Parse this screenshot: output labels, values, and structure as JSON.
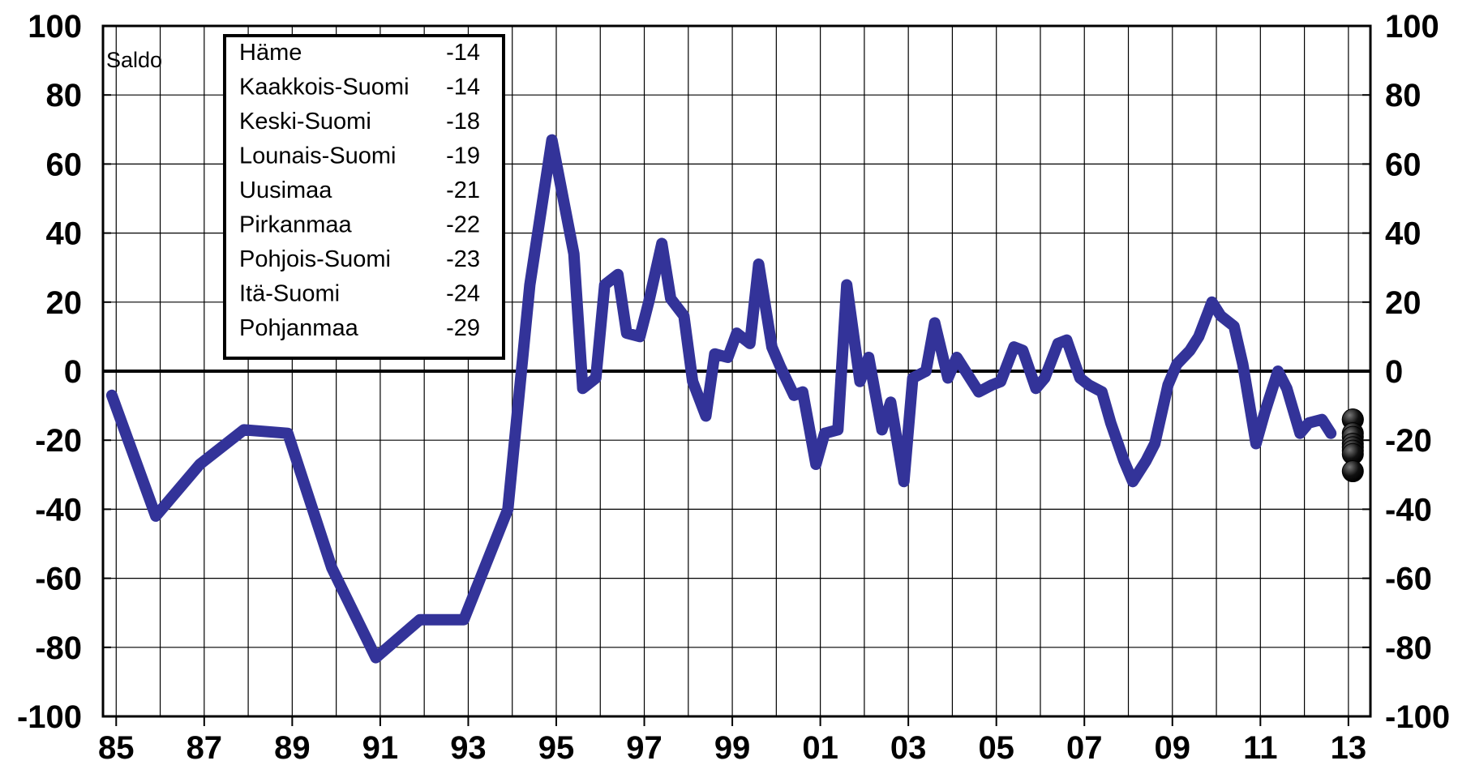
{
  "chart_data": {
    "type": "line",
    "ylabel": "Saldo",
    "ylim": [
      -100,
      100
    ],
    "y_ticks": [
      "100",
      "80",
      "60",
      "40",
      "20",
      "0",
      "-20",
      "-40",
      "-60",
      "-80",
      "-100"
    ],
    "x_ticks": [
      "85",
      "87",
      "89",
      "91",
      "93",
      "95",
      "97",
      "99",
      "01",
      "03",
      "05",
      "07",
      "09",
      "11",
      "13"
    ],
    "grid": true,
    "x_range": [
      1984.7,
      2013.5
    ],
    "colors": {
      "line": "#333399",
      "marker": "#000000"
    },
    "series": [
      {
        "x": [
          1984.9,
          1985.9,
          1986.9,
          1987.9,
          1988.9,
          1989.9,
          1990.9,
          1991.9,
          1992.9,
          1993.9,
          1994.4,
          1994.9,
          1995.4,
          1995.6,
          1995.9,
          1996.1,
          1996.4,
          1996.6,
          1996.9,
          1997.1,
          1997.4,
          1997.6,
          1997.9,
          1998.1,
          1998.4,
          1998.6,
          1998.9,
          1999.1,
          1999.4,
          1999.6,
          1999.9,
          2000.1,
          2000.4,
          2000.6,
          2000.9,
          2001.1,
          2001.4,
          2001.6,
          2001.9,
          2002.1,
          2002.4,
          2002.6,
          2002.9,
          2003.1,
          2003.4,
          2003.6,
          2003.9,
          2004.1,
          2004.4,
          2004.6,
          2004.9,
          2005.1,
          2005.4,
          2005.6,
          2005.9,
          2006.1,
          2006.4,
          2006.6,
          2006.9,
          2007.1,
          2007.4,
          2007.6,
          2007.9,
          2008.1,
          2008.4,
          2008.6,
          2008.9,
          2009.1,
          2009.4,
          2009.6,
          2009.9,
          2010.1,
          2010.4,
          2010.6,
          2010.9,
          2011.1,
          2011.4,
          2011.6,
          2011.9,
          2012.1,
          2012.4,
          2012.6
        ],
        "y": [
          -7,
          -42,
          -27,
          -17,
          -18,
          -57,
          -83,
          -72,
          -72,
          -40,
          25,
          67,
          34,
          -5,
          -2,
          25,
          28,
          11,
          10,
          20,
          37,
          21,
          16,
          -3,
          -13,
          5,
          4,
          11,
          8,
          31,
          7,
          1,
          -7,
          -6,
          -27,
          -18,
          -17,
          25,
          -3,
          4,
          -17,
          -9,
          -32,
          -2,
          0,
          14,
          -2,
          4,
          -2,
          -6,
          -4,
          -3,
          7,
          6,
          -5,
          -2,
          8,
          9,
          -2,
          -4,
          -6,
          -15,
          -26,
          -32,
          -26,
          -21,
          -4,
          2,
          6,
          10,
          20,
          16,
          13,
          2,
          -21,
          -12,
          0,
          -5,
          -18,
          -15,
          -14,
          -18
        ]
      }
    ],
    "markers": [
      {
        "label": "Häme",
        "value": -14
      },
      {
        "label": "Kaakkois-Suomi",
        "value": -14
      },
      {
        "label": "Keski-Suomi",
        "value": -18
      },
      {
        "label": "Lounais-Suomi",
        "value": -19
      },
      {
        "label": "Uusimaa",
        "value": -21
      },
      {
        "label": "Pirkanmaa",
        "value": -22
      },
      {
        "label": "Pohjois-Suomi",
        "value": -23
      },
      {
        "label": "Itä-Suomi",
        "value": -24
      },
      {
        "label": "Pohjanmaa",
        "value": -29
      }
    ],
    "marker_x": 2012.6
  }
}
